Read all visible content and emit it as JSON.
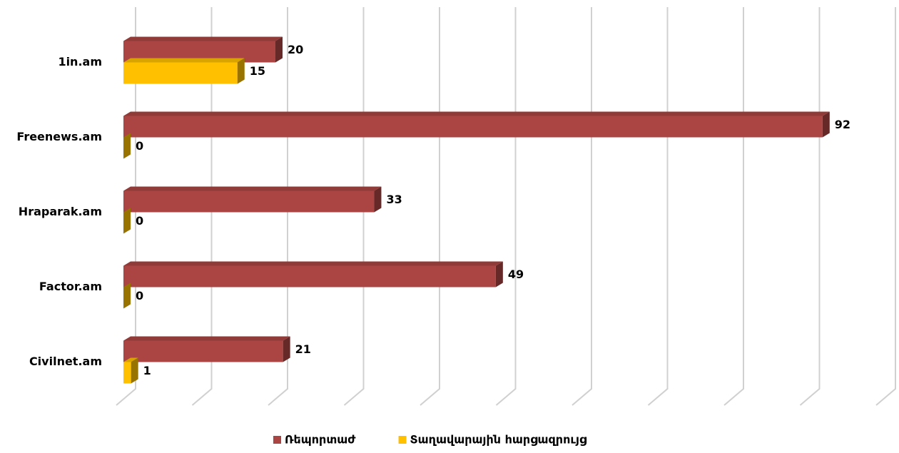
{
  "chart_data": {
    "type": "bar3d-horizontal",
    "categories": [
      "1in.am",
      "Freenews.am",
      "Hraparak.am",
      "Factor.am",
      "Civilnet.am"
    ],
    "series": [
      {
        "name": "Ռեպորտաժ",
        "color": "#ab4543",
        "values": [
          20,
          92,
          33,
          49,
          21
        ]
      },
      {
        "name": "Տաղավարային հարցազրույց",
        "color": "#ffc000",
        "values": [
          15,
          0,
          0,
          0,
          1
        ]
      }
    ],
    "xlim": [
      0,
      100
    ],
    "xticks": [
      0,
      10,
      20,
      30,
      40,
      50,
      60,
      70,
      80,
      90,
      100
    ],
    "grid": true,
    "legend": "bottom"
  }
}
